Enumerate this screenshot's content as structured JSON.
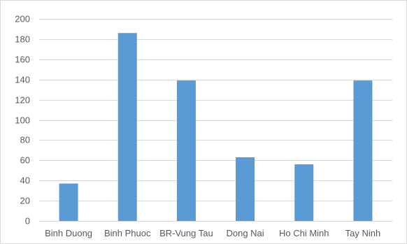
{
  "chart_data": {
    "type": "bar",
    "title": "",
    "xlabel": "",
    "ylabel": "",
    "categories": [
      "Binh Duong",
      "Binh Phuoc",
      "BR-Vung Tau",
      "Dong Nai",
      "Ho Chi Minh",
      "Tay Ninh"
    ],
    "values": [
      37,
      186,
      139,
      63,
      56,
      139
    ],
    "ylim": [
      0,
      200
    ],
    "yticks": [
      0,
      20,
      40,
      60,
      80,
      100,
      120,
      140,
      160,
      180,
      200
    ],
    "grid": true,
    "legend": "none",
    "bar_color": "#5b9bd5"
  }
}
